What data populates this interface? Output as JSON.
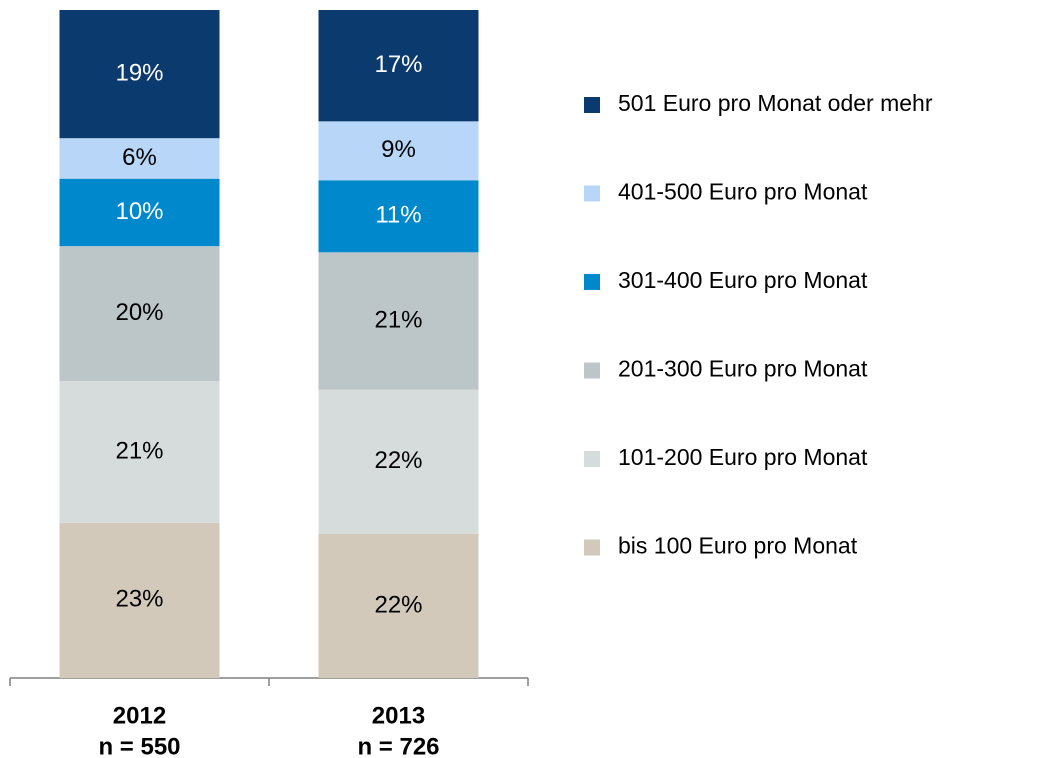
{
  "chart_data": {
    "type": "stacked_bar",
    "stacking": "percent",
    "categories": [
      "2012",
      "2013"
    ],
    "sample_sizes": [
      "n = 550",
      "n = 726"
    ],
    "series": [
      {
        "name": "bis 100 Euro pro Monat",
        "color": "#d3c9bb",
        "values": [
          23,
          22
        ],
        "value_labels": [
          "23%",
          "22%"
        ]
      },
      {
        "name": "101-200 Euro pro Monat",
        "color": "#d5dcdb",
        "values": [
          21,
          22
        ],
        "value_labels": [
          "21%",
          "22%"
        ]
      },
      {
        "name": "201-300 Euro pro Monat",
        "color": "#bcc6c9",
        "values": [
          20,
          21
        ],
        "value_labels": [
          "20%",
          "21%"
        ]
      },
      {
        "name": "301-400 Euro pro Monat",
        "color": "#0088cc",
        "values": [
          10,
          11
        ],
        "value_labels": [
          "10%",
          "11%"
        ]
      },
      {
        "name": "401-500 Euro pro Monat",
        "color": "#b8d7f8",
        "values": [
          6,
          9
        ],
        "value_labels": [
          "6%",
          "9%"
        ]
      },
      {
        "name": "501 Euro pro Monat oder mehr",
        "color": "#0a3a6e",
        "values": [
          19,
          17
        ],
        "value_labels": [
          "19%",
          "17%"
        ]
      }
    ],
    "legend": "right"
  }
}
